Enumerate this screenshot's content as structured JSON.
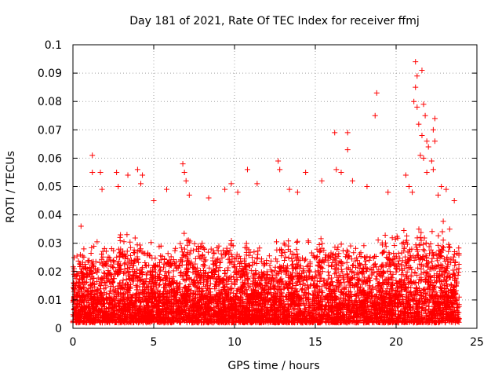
{
  "chart_data": {
    "type": "scatter",
    "title": "Day 181 of 2021, Rate Of TEC Index for receiver ffmj",
    "xlabel": "GPS time / hours",
    "ylabel": "ROTI / TECUs",
    "xlim": [
      0,
      25
    ],
    "ylim": [
      0,
      0.1
    ],
    "x_ticks": [
      "0",
      "5",
      "10",
      "15",
      "20",
      "25"
    ],
    "y_ticks": [
      "0",
      "0.01",
      "0.02",
      "0.03",
      "0.04",
      "0.05",
      "0.06",
      "0.07",
      "0.08",
      "0.09",
      "0.1"
    ],
    "grid": true,
    "marker": "+",
    "color": "#ff0000",
    "series": [
      {
        "name": "ROTI",
        "note": "dense cloud of points between ~0.002 and ~0.03 TECU across 0-24 h; highlighted outliers below",
        "density_envelope": {
          "x": [
            0,
            1,
            2,
            3,
            4,
            5,
            6,
            7,
            8,
            9,
            10,
            11,
            12,
            13,
            14,
            15,
            16,
            17,
            18,
            19,
            20,
            21,
            22,
            23,
            24
          ],
          "y_max": [
            0.028,
            0.033,
            0.03,
            0.035,
            0.034,
            0.032,
            0.028,
            0.036,
            0.033,
            0.032,
            0.034,
            0.032,
            0.03,
            0.034,
            0.033,
            0.032,
            0.033,
            0.034,
            0.033,
            0.034,
            0.036,
            0.038,
            0.04,
            0.038,
            0.03
          ]
        },
        "outliers": [
          {
            "x": 0.5,
            "y": 0.036
          },
          {
            "x": 1.2,
            "y": 0.061
          },
          {
            "x": 1.2,
            "y": 0.055
          },
          {
            "x": 1.7,
            "y": 0.055
          },
          {
            "x": 1.8,
            "y": 0.049
          },
          {
            "x": 2.7,
            "y": 0.055
          },
          {
            "x": 2.8,
            "y": 0.05
          },
          {
            "x": 3.4,
            "y": 0.054
          },
          {
            "x": 4.0,
            "y": 0.056
          },
          {
            "x": 4.3,
            "y": 0.054
          },
          {
            "x": 4.2,
            "y": 0.051
          },
          {
            "x": 5.0,
            "y": 0.045
          },
          {
            "x": 5.8,
            "y": 0.049
          },
          {
            "x": 6.8,
            "y": 0.058
          },
          {
            "x": 6.9,
            "y": 0.055
          },
          {
            "x": 7.0,
            "y": 0.052
          },
          {
            "x": 7.2,
            "y": 0.047
          },
          {
            "x": 8.4,
            "y": 0.046
          },
          {
            "x": 9.4,
            "y": 0.049
          },
          {
            "x": 9.8,
            "y": 0.051
          },
          {
            "x": 10.2,
            "y": 0.048
          },
          {
            "x": 10.8,
            "y": 0.056
          },
          {
            "x": 11.4,
            "y": 0.051
          },
          {
            "x": 12.7,
            "y": 0.059
          },
          {
            "x": 12.8,
            "y": 0.056
          },
          {
            "x": 13.4,
            "y": 0.049
          },
          {
            "x": 13.9,
            "y": 0.048
          },
          {
            "x": 14.4,
            "y": 0.055
          },
          {
            "x": 15.4,
            "y": 0.052
          },
          {
            "x": 16.2,
            "y": 0.069
          },
          {
            "x": 16.3,
            "y": 0.056
          },
          {
            "x": 16.6,
            "y": 0.055
          },
          {
            "x": 17.0,
            "y": 0.069
          },
          {
            "x": 17.0,
            "y": 0.063
          },
          {
            "x": 17.3,
            "y": 0.052
          },
          {
            "x": 18.2,
            "y": 0.05
          },
          {
            "x": 18.7,
            "y": 0.075
          },
          {
            "x": 18.8,
            "y": 0.083
          },
          {
            "x": 19.5,
            "y": 0.048
          },
          {
            "x": 20.6,
            "y": 0.054
          },
          {
            "x": 20.8,
            "y": 0.05
          },
          {
            "x": 21.2,
            "y": 0.094
          },
          {
            "x": 21.3,
            "y": 0.089
          },
          {
            "x": 21.2,
            "y": 0.085
          },
          {
            "x": 21.1,
            "y": 0.08
          },
          {
            "x": 21.3,
            "y": 0.078
          },
          {
            "x": 21.6,
            "y": 0.091
          },
          {
            "x": 21.7,
            "y": 0.079
          },
          {
            "x": 21.4,
            "y": 0.072
          },
          {
            "x": 21.8,
            "y": 0.075
          },
          {
            "x": 21.9,
            "y": 0.066
          },
          {
            "x": 21.6,
            "y": 0.068
          },
          {
            "x": 22.0,
            "y": 0.064
          },
          {
            "x": 21.7,
            "y": 0.06
          },
          {
            "x": 22.4,
            "y": 0.074
          },
          {
            "x": 22.3,
            "y": 0.07
          },
          {
            "x": 22.4,
            "y": 0.066
          },
          {
            "x": 22.2,
            "y": 0.059
          },
          {
            "x": 22.3,
            "y": 0.056
          },
          {
            "x": 21.5,
            "y": 0.061
          },
          {
            "x": 21.9,
            "y": 0.055
          },
          {
            "x": 22.8,
            "y": 0.05
          },
          {
            "x": 23.1,
            "y": 0.049
          },
          {
            "x": 23.6,
            "y": 0.045
          },
          {
            "x": 22.6,
            "y": 0.047
          },
          {
            "x": 21.0,
            "y": 0.048
          }
        ]
      }
    ]
  }
}
